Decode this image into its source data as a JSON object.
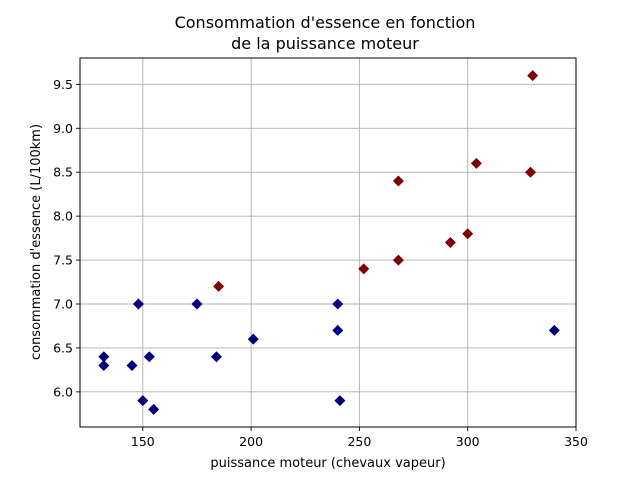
{
  "chart_data": {
    "type": "scatter",
    "title_lines": [
      "Consommation d'essence en fonction",
      "de la puissance moteur"
    ],
    "xlabel": "puissance moteur (chevaux vapeur)",
    "ylabel": "consommation d'essence (L/100km)",
    "xlim": [
      121,
      350
    ],
    "ylim": [
      5.6,
      9.8
    ],
    "x_ticks": [
      150,
      200,
      250,
      300,
      350
    ],
    "y_ticks": [
      6.0,
      6.5,
      7.0,
      7.5,
      8.0,
      8.5,
      9.0,
      9.5
    ],
    "y_tick_labels": [
      "6.0",
      "6.5",
      "7.0",
      "7.5",
      "8.0",
      "8.5",
      "9.0",
      "9.5"
    ],
    "x_tick_labels": [
      "150",
      "200",
      "250",
      "300",
      "350"
    ],
    "grid": true,
    "marker": "diamond",
    "series": [
      {
        "color": "#00007f",
        "points": [
          {
            "x": 132,
            "y": 6.4
          },
          {
            "x": 132,
            "y": 6.3
          },
          {
            "x": 145,
            "y": 6.3
          },
          {
            "x": 148,
            "y": 7.0
          },
          {
            "x": 150,
            "y": 5.9
          },
          {
            "x": 153,
            "y": 6.4
          },
          {
            "x": 155,
            "y": 5.8
          },
          {
            "x": 175,
            "y": 7.0
          },
          {
            "x": 184,
            "y": 6.4
          },
          {
            "x": 201,
            "y": 6.6
          },
          {
            "x": 240,
            "y": 7.0
          },
          {
            "x": 240,
            "y": 6.7
          },
          {
            "x": 241,
            "y": 5.9
          },
          {
            "x": 340,
            "y": 6.7
          }
        ]
      },
      {
        "color": "#7f0000",
        "points": [
          {
            "x": 185,
            "y": 7.2
          },
          {
            "x": 252,
            "y": 7.4
          },
          {
            "x": 268,
            "y": 8.4
          },
          {
            "x": 268,
            "y": 7.5
          },
          {
            "x": 292,
            "y": 7.7
          },
          {
            "x": 300,
            "y": 7.8
          },
          {
            "x": 304,
            "y": 8.6
          },
          {
            "x": 329,
            "y": 8.5
          },
          {
            "x": 330,
            "y": 9.6
          }
        ]
      }
    ]
  }
}
